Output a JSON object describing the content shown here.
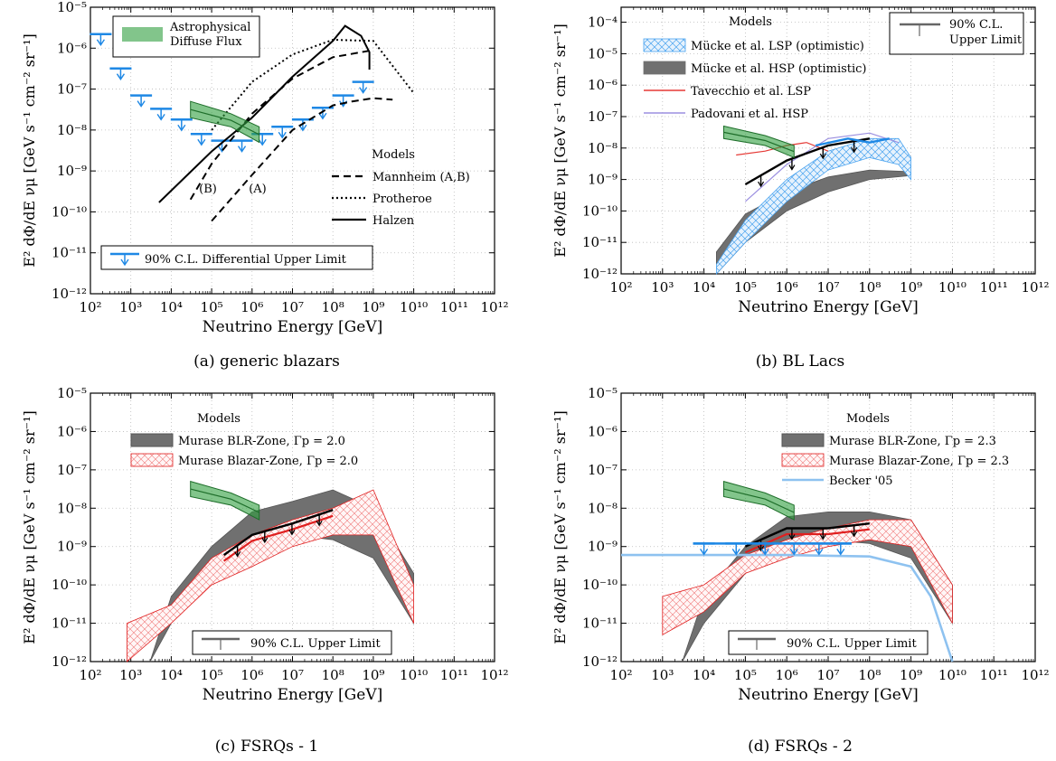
{
  "panels": [
    {
      "caption": "(a) generic blazars",
      "ylabel": "[GeV s⁻¹ cm⁻² sr⁻¹]",
      "ylabel_prefix": "E² dΦ/dE νμ",
      "xlabel": "Neutrino Energy [GeV]",
      "x_ticks": [
        "10²",
        "10³",
        "10⁴",
        "10⁵",
        "10⁶",
        "10⁷",
        "10⁸",
        "10⁹",
        "10¹⁰",
        "10¹¹",
        "10¹²"
      ],
      "y_ticks": [
        "10⁻¹²",
        "10⁻¹¹",
        "10⁻¹⁰",
        "10⁻⁹",
        "10⁻⁸",
        "10⁻⁷",
        "10⁻⁶",
        "10⁻⁵"
      ],
      "legend_top": "Astrophysical Diffuse Flux",
      "legend_models_title": "Models",
      "legend_models": [
        "Mannheim (A,B)",
        "Protheroe",
        "Halzen"
      ],
      "legend_limit": "90% C.L. Differential Upper Limit",
      "annotations": [
        "(B)",
        "(A)"
      ]
    },
    {
      "caption": "(b) BL Lacs",
      "ylabel": "[GeV s⁻¹ cm⁻² sr⁻¹]",
      "ylabel_prefix": "E² dΦ/dE νμ",
      "xlabel": "Neutrino Energy [GeV]",
      "x_ticks": [
        "10²",
        "10³",
        "10⁴",
        "10⁵",
        "10⁶",
        "10⁷",
        "10⁸",
        "10⁹",
        "10¹⁰",
        "10¹¹",
        "10¹²"
      ],
      "y_ticks": [
        "10⁻¹²",
        "10⁻¹¹",
        "10⁻¹⁰",
        "10⁻⁹",
        "10⁻⁸",
        "10⁻⁷",
        "10⁻⁶",
        "10⁻⁵",
        "10⁻⁴"
      ],
      "legend_models_title": "Models",
      "legend_models": [
        "Mücke et al. LSP (optimistic)",
        "Mücke et al. HSP (optimistic)",
        "Tavecchio et al. LSP",
        "Padovani et al. HSP"
      ],
      "legend_limit": "90% C.L. Upper Limit"
    },
    {
      "caption": "(c) FSRQs - 1",
      "ylabel": "[GeV s⁻¹ cm⁻² sr⁻¹]",
      "ylabel_prefix": "E² dΦ/dE νμ",
      "xlabel": "Neutrino Energy [GeV]",
      "x_ticks": [
        "10²",
        "10³",
        "10⁴",
        "10⁵",
        "10⁶",
        "10⁷",
        "10⁸",
        "10⁹",
        "10¹⁰",
        "10¹¹",
        "10¹²"
      ],
      "y_ticks": [
        "10⁻¹²",
        "10⁻¹¹",
        "10⁻¹⁰",
        "10⁻⁹",
        "10⁻⁸",
        "10⁻⁷",
        "10⁻⁶",
        "10⁻⁵"
      ],
      "legend_models_title": "Models",
      "legend_models": [
        "Murase BLR-Zone, Γp = 2.0",
        "Murase Blazar-Zone, Γp = 2.0"
      ],
      "legend_limit": "90% C.L. Upper Limit"
    },
    {
      "caption": "(d) FSRQs - 2",
      "ylabel": "[GeV s⁻¹ cm⁻² sr⁻¹]",
      "ylabel_prefix": "E² dΦ/dE νμ",
      "xlabel": "Neutrino Energy [GeV]",
      "x_ticks": [
        "10²",
        "10³",
        "10⁴",
        "10⁵",
        "10⁶",
        "10⁷",
        "10⁸",
        "10⁹",
        "10¹⁰",
        "10¹¹",
        "10¹²"
      ],
      "y_ticks": [
        "10⁻¹²",
        "10⁻¹¹",
        "10⁻¹⁰",
        "10⁻⁹",
        "10⁻⁸",
        "10⁻⁷",
        "10⁻⁶",
        "10⁻⁵"
      ],
      "legend_models_title": "Models",
      "legend_models": [
        "Murase BLR-Zone, Γp = 2.3",
        "Murase Blazar-Zone, Γp = 2.3",
        "Becker '05"
      ],
      "legend_limit": "90% C.L. Upper Limit"
    }
  ],
  "colors": {
    "limit_blue": "#1e88e5",
    "diffuse_green": "#2e9e3e",
    "model_gray": "#707070",
    "murase_red": "#e02020",
    "tavecchio_red": "#e53935",
    "padovani_purple": "#9b8fe0",
    "becker_lightblue": "#8ec2f0",
    "black": "#000000"
  },
  "chart_data": [
    {
      "type": "line",
      "title": "(a) generic blazars",
      "xscale": "log",
      "yscale": "log",
      "xlim": [
        100,
        1000000000000.0
      ],
      "ylim": [
        1e-12,
        1e-05
      ],
      "xlabel": "Neutrino Energy [GeV]",
      "ylabel": "E² dΦ/dE νμ [GeV s⁻¹ cm⁻² sr⁻¹]",
      "series": [
        {
          "name": "90% C.L. Differential Upper Limit",
          "kind": "upper_limits",
          "x": [
            180.0,
            560.0,
            1800.0,
            5600.0,
            18000.0,
            56000.0,
            180000.0,
            560000.0,
            1800000.0,
            5600000.0,
            18000000.0,
            56000000.0,
            180000000.0,
            560000000.0
          ],
          "y": [
            2.2e-06,
            3.2e-07,
            7e-08,
            3.3e-08,
            1.8e-08,
            8e-09,
            5.5e-09,
            5.5e-09,
            8e-09,
            1.2e-08,
            1.8e-08,
            3.5e-08,
            7e-08,
            1.5e-07
          ]
        },
        {
          "name": "Mannheim (A,B)",
          "kind": "line_dashed",
          "x": [
            30000.0,
            100000.0,
            1000000.0,
            10000000.0,
            100000000.0,
            1000000000.0
          ],
          "y": [
            2e-10,
            1.5e-09,
            2.5e-08,
            1.8e-07,
            6e-07,
            9e-07
          ]
        },
        {
          "name": "Mannheim (A,B)",
          "kind": "line_dashed",
          "x": [
            100000.0,
            1000000.0,
            10000000.0,
            100000000.0,
            300000000.0,
            1000000000.0,
            3000000000.0
          ],
          "y": [
            6e-11,
            8e-10,
            1e-08,
            4e-08,
            5e-08,
            6e-08,
            5.5e-08
          ]
        },
        {
          "name": "Protheroe",
          "kind": "line_dotted",
          "x": [
            100000.0,
            1000000.0,
            10000000.0,
            100000000.0,
            1000000000.0,
            10000000000.0
          ],
          "y": [
            1e-08,
            1.5e-07,
            7e-07,
            1.6e-06,
            1.5e-06,
            8e-08
          ]
        },
        {
          "name": "Halzen",
          "kind": "line_solid",
          "x": [
            5000.0,
            100000.0,
            1000000.0,
            10000000.0,
            100000000.0,
            200000000.0,
            500000000.0,
            800000000.0,
            800000000.0
          ],
          "y": [
            1.7e-10,
            3e-09,
            2e-08,
            2e-07,
            1.5e-06,
            3.5e-06,
            2e-06,
            8e-07,
            3e-07
          ]
        },
        {
          "name": "Astrophysical Diffuse Flux",
          "kind": "band",
          "x": [
            30000.0,
            300000.0,
            1500000.0
          ],
          "y_low": [
            2e-08,
            1.2e-08,
            5e-09
          ],
          "y_high": [
            5e-08,
            2.5e-08,
            1.2e-08
          ]
        }
      ]
    },
    {
      "type": "line",
      "title": "(b) BL Lacs",
      "xscale": "log",
      "yscale": "log",
      "xlim": [
        100,
        1000000000000.0
      ],
      "ylim": [
        1e-12,
        0.0003
      ],
      "xlabel": "Neutrino Energy [GeV]",
      "ylabel": "E² dΦ/dE νμ [GeV s⁻¹ cm⁻² sr⁻¹]",
      "series": [
        {
          "name": "Mücke et al. HSP (optimistic)",
          "kind": "band",
          "x": [
            20000.0,
            100000.0,
            1000000.0,
            10000000.0,
            100000000.0,
            800000000.0
          ],
          "y_low": [
            1e-12,
            1e-11,
            1e-10,
            4e-10,
            1e-09,
            1.3e-09
          ],
          "y_high": [
            5e-12,
            8e-11,
            4e-10,
            1.2e-09,
            2e-09,
            1.8e-09
          ]
        },
        {
          "name": "Mücke et al. LSP (optimistic)",
          "kind": "band",
          "x": [
            20000.0,
            100000.0,
            1000000.0,
            10000000.0,
            100000000.0,
            500000000.0,
            1000000000.0
          ],
          "y_low": [
            1e-12,
            1e-11,
            2e-10,
            2e-09,
            5e-09,
            3e-09,
            1e-09
          ],
          "y_high": [
            2e-12,
            5e-11,
            1e-09,
            8e-09,
            2e-08,
            2e-08,
            5e-09
          ]
        },
        {
          "name": "Tavecchio et al. LSP",
          "kind": "line_solid",
          "x": [
            60000.0,
            300000.0,
            1000000.0,
            3000000.0,
            10000000.0
          ],
          "y": [
            6e-09,
            8e-09,
            1.2e-08,
            1.5e-08,
            8e-09
          ]
        },
        {
          "name": "Padovani et al. HSP",
          "kind": "line_solid",
          "x": [
            100000.0,
            1000000.0,
            10000000.0,
            100000000.0,
            500000000.0
          ],
          "y": [
            2e-10,
            3e-09,
            2e-08,
            3e-08,
            1.5e-08
          ]
        },
        {
          "name": "90% C.L. Upper Limit",
          "kind": "limit_curve",
          "x": [
            100000.0,
            1000000.0,
            10000000.0,
            100000000.0
          ],
          "y": [
            7e-10,
            4e-09,
            1.2e-08,
            2e-08
          ]
        },
        {
          "name": "Astrophysical Diffuse Flux",
          "kind": "band",
          "x": [
            30000.0,
            300000.0,
            1500000.0
          ],
          "y_low": [
            2e-08,
            1.2e-08,
            5e-09
          ],
          "y_high": [
            5e-08,
            2.5e-08,
            1.2e-08
          ]
        }
      ]
    },
    {
      "type": "line",
      "title": "(c) FSRQs - 1",
      "xscale": "log",
      "yscale": "log",
      "xlim": [
        100,
        1000000000000.0
      ],
      "ylim": [
        1e-12,
        1e-05
      ],
      "xlabel": "Neutrino Energy [GeV]",
      "ylabel": "E² dΦ/dE νμ [GeV s⁻¹ cm⁻² sr⁻¹]",
      "series": [
        {
          "name": "Murase BLR-Zone, Γp = 2.0",
          "kind": "band",
          "x": [
            3000.0,
            10000.0,
            100000.0,
            1000000.0,
            10000000.0,
            100000000.0,
            1000000000.0,
            10000000000.0
          ],
          "y_low": [
            1e-12,
            1e-11,
            4e-10,
            1.5e-09,
            2e-09,
            1.5e-09,
            5e-10,
            1e-11
          ],
          "y_high": [
            1e-12,
            5e-11,
            1e-09,
            8e-09,
            1.5e-08,
            3e-08,
            1e-08,
            2e-10
          ]
        },
        {
          "name": "Murase Blazar-Zone, Γp = 2.0",
          "kind": "band",
          "x": [
            800.0,
            10000.0,
            100000.0,
            1000000.0,
            10000000.0,
            100000000.0,
            1000000000.0,
            10000000000.0
          ],
          "y_low": [
            1e-12,
            1e-11,
            1e-10,
            3e-10,
            1e-09,
            2e-09,
            2e-09,
            1e-11
          ],
          "y_high": [
            1e-11,
            3e-11,
            5e-10,
            2e-09,
            5e-09,
            1e-08,
            3e-08,
            1e-10
          ]
        },
        {
          "name": "90% C.L. Upper Limit",
          "kind": "limit_curve",
          "x": [
            200000.0,
            1000000.0,
            10000000.0,
            100000000.0
          ],
          "y": [
            6e-10,
            2e-09,
            4e-09,
            9e-09
          ]
        },
        {
          "name": "Astrophysical Diffuse Flux",
          "kind": "band",
          "x": [
            30000.0,
            300000.0,
            1500000.0
          ],
          "y_low": [
            2e-08,
            1.2e-08,
            5e-09
          ],
          "y_high": [
            5e-08,
            2.5e-08,
            1.2e-08
          ]
        }
      ]
    },
    {
      "type": "line",
      "title": "(d) FSRQs - 2",
      "xscale": "log",
      "yscale": "log",
      "xlim": [
        100,
        1000000000000.0
      ],
      "ylim": [
        1e-12,
        1e-05
      ],
      "xlabel": "Neutrino Energy [GeV]",
      "ylabel": "E² dΦ/dE νμ [GeV s⁻¹ cm⁻² sr⁻¹]",
      "series": [
        {
          "name": "Murase BLR-Zone, Γp = 2.3",
          "kind": "band",
          "x": [
            3000.0,
            10000.0,
            100000.0,
            1000000.0,
            10000000.0,
            100000000.0,
            1000000000.0,
            10000000000.0
          ],
          "y_low": [
            1e-12,
            1e-11,
            2e-10,
            1e-09,
            1.5e-09,
            1.2e-09,
            5e-10,
            1e-11
          ],
          "y_high": [
            1e-12,
            5e-11,
            1e-09,
            6e-09,
            8e-09,
            8e-09,
            5e-09,
            1e-10
          ]
        },
        {
          "name": "Murase Blazar-Zone, Γp = 2.3",
          "kind": "band",
          "x": [
            1000.0,
            10000.0,
            100000.0,
            1000000.0,
            10000000.0,
            100000000.0,
            1000000000.0,
            10000000000.0
          ],
          "y_low": [
            5e-12,
            2e-11,
            2e-10,
            5e-10,
            1e-09,
            1.5e-09,
            1e-09,
            1e-11
          ],
          "y_high": [
            5e-11,
            1e-10,
            6e-10,
            1.5e-09,
            3e-09,
            5e-09,
            5e-09,
            1e-10
          ]
        },
        {
          "name": "Becker '05",
          "kind": "line_solid",
          "x": [
            100,
            10000.0,
            1000000.0,
            100000000.0,
            1000000000.0,
            3000000000.0,
            10000000000.0
          ],
          "y": [
            6e-10,
            6e-10,
            6e-10,
            5.5e-10,
            3e-10,
            5e-11,
            1e-12
          ]
        },
        {
          "name": "90% C.L. Upper Limit",
          "kind": "limit_curve",
          "x": [
            100000.0,
            1000000.0,
            10000000.0,
            100000000.0
          ],
          "y": [
            1e-09,
            3e-09,
            3e-09,
            4e-09
          ]
        },
        {
          "name": "90% C.L. Upper Limit",
          "kind": "upper_limits",
          "x": [
            10000.0,
            60000.0,
            300000.0,
            1500000.0,
            6000000.0,
            20000000.0
          ],
          "y": [
            1.2e-09,
            1.2e-09,
            1.2e-09,
            1.2e-09,
            1.2e-09,
            1.2e-09
          ]
        },
        {
          "name": "Astrophysical Diffuse Flux",
          "kind": "band",
          "x": [
            30000.0,
            300000.0,
            1500000.0
          ],
          "y_low": [
            2e-08,
            1.2e-08,
            5e-09
          ],
          "y_high": [
            5e-08,
            2.5e-08,
            1.2e-08
          ]
        }
      ]
    }
  ]
}
